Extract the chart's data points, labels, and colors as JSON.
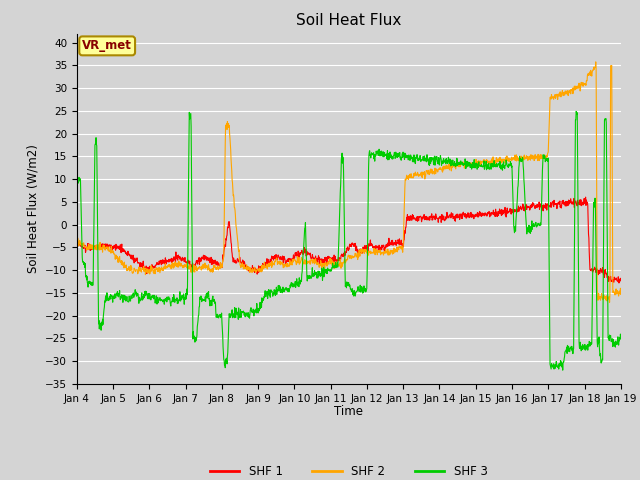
{
  "title": "Soil Heat Flux",
  "ylabel": "Soil Heat Flux (W/m2)",
  "xlabel": "Time",
  "ylim": [
    -35,
    42
  ],
  "yticks": [
    -35,
    -30,
    -25,
    -20,
    -15,
    -10,
    -5,
    0,
    5,
    10,
    15,
    20,
    25,
    30,
    35,
    40
  ],
  "colors": {
    "SHF 1": "#ff0000",
    "SHF 2": "#ffa500",
    "SHF 3": "#00cc00"
  },
  "bg_color": "#d4d4d4",
  "grid_color": "#ffffff",
  "annotation_label": "VR_met",
  "annotation_bg": "#ffff99",
  "annotation_border": "#aa8800",
  "annotation_text_color": "#880000",
  "x_tick_labels": [
    "Jan 4",
    "Jan 5",
    "Jan 6",
    "Jan 7",
    "Jan 8",
    "Jan 9",
    "Jan 10",
    "Jan 11",
    "Jan 12",
    "Jan 13",
    "Jan 14",
    "Jan 15",
    "Jan 16",
    "Jan 17",
    "Jan 18",
    "Jan 19"
  ],
  "figsize": [
    6.4,
    4.8
  ],
  "dpi": 100
}
